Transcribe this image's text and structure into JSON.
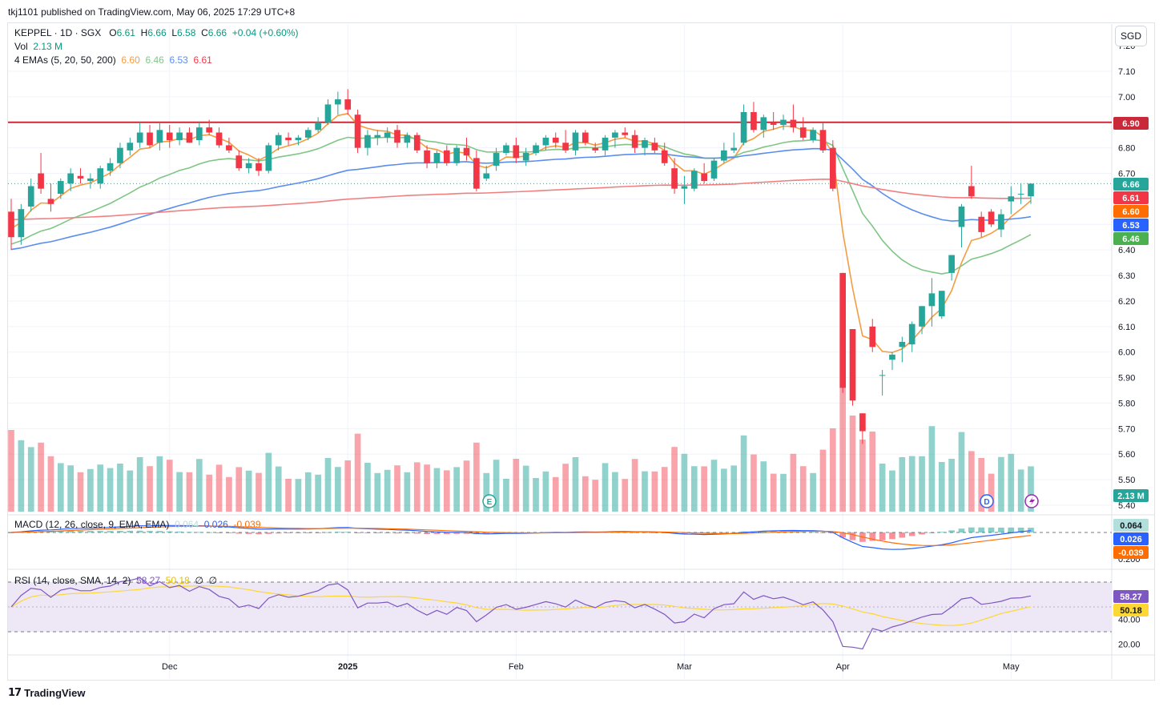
{
  "header": {
    "publisher_line": "tkj1101 published on TradingView.com, May 06, 2025 17:29 UTC+8"
  },
  "legend": {
    "symbol": "KEPPEL · 1D · SGX",
    "o_label": "O",
    "o_value": "6.61",
    "h_label": "H",
    "h_value": "6.66",
    "l_label": "L",
    "l_value": "6.58",
    "c_label": "C",
    "c_value": "6.66",
    "change": "+0.04 (+0.60%)",
    "vol_label": "Vol",
    "vol_value": "2.13 M",
    "ema_label": "4 EMAs (5, 20, 50, 200)",
    "ema5": "6.60",
    "ema20": "6.46",
    "ema50": "6.53",
    "ema200": "6.61"
  },
  "currency_button": "SGD",
  "price_axis": {
    "ticks": [
      "7.10",
      "7.00",
      "6.90",
      "6.80",
      "6.70",
      "6.60",
      "6.50",
      "6.40",
      "6.30",
      "6.20",
      "6.10",
      "6.00",
      "5.90",
      "5.80",
      "5.70",
      "5.60",
      "5.50",
      "5.40"
    ],
    "partial_top_tick": "7.20",
    "labels": {
      "resistance": "6.90",
      "last_price": "6.66",
      "ema200": "6.61",
      "ema5": "6.60",
      "ema50": "6.53",
      "ema20": "6.46",
      "volume": "2.13 M"
    }
  },
  "time_axis": [
    "Dec",
    "2025",
    "Feb",
    "Mar",
    "Apr",
    "May"
  ],
  "macd": {
    "legend": "MACD (12, 26, close, 9, EMA, EMA)",
    "hist": "0.064",
    "macd": "0.026",
    "signal": "-0.039",
    "axis_ticks": [
      "0.200"
    ]
  },
  "rsi": {
    "legend": "RSI (14, close, SMA, 14, 2)",
    "rsi": "58.27",
    "sma": "50.18",
    "extra1": "∅",
    "extra2": "∅",
    "axis_ticks": [
      "60.00",
      "40.00",
      "20.00"
    ],
    "axis_labels": {
      "rsi": "58.27",
      "sma": "50.18"
    }
  },
  "event_markers": [
    "E",
    "D"
  ],
  "brand": "TradingView",
  "colors": {
    "up": "#26a69a",
    "down": "#f23645",
    "ema5": "#f59c42",
    "ema20": "#7fc685",
    "ema50": "#5b8def",
    "ema200": "#f08080",
    "resistance": "#c92a3a",
    "macd_line": "#2962ff",
    "signal_line": "#ff6d00",
    "rsi_line": "#7e57c2",
    "rsi_sma": "#fdd835",
    "rsi_band": "#ede7f6"
  },
  "chart_data": [
    {
      "type": "candlestick",
      "title": "KEPPEL · 1D · SGX",
      "ylim": [
        5.4,
        7.2
      ],
      "last": {
        "open": 6.61,
        "high": 6.66,
        "low": 6.58,
        "close": 6.66
      },
      "resistance_level": 6.9,
      "candles": [
        [
          6.55,
          6.6,
          6.4,
          6.45
        ],
        [
          6.45,
          6.58,
          6.42,
          6.56
        ],
        [
          6.57,
          6.68,
          6.55,
          6.65
        ],
        [
          6.7,
          6.78,
          6.62,
          6.64
        ],
        [
          6.6,
          6.66,
          6.55,
          6.58
        ],
        [
          6.62,
          6.68,
          6.6,
          6.67
        ],
        [
          6.66,
          6.72,
          6.63,
          6.7
        ],
        [
          6.69,
          6.72,
          6.66,
          6.68
        ],
        [
          6.67,
          6.7,
          6.64,
          6.68
        ],
        [
          6.66,
          6.73,
          6.64,
          6.72
        ],
        [
          6.71,
          6.76,
          6.69,
          6.74
        ],
        [
          6.74,
          6.82,
          6.72,
          6.8
        ],
        [
          6.79,
          6.84,
          6.77,
          6.82
        ],
        [
          6.82,
          6.9,
          6.8,
          6.86
        ],
        [
          6.86,
          6.89,
          6.8,
          6.81
        ],
        [
          6.82,
          6.9,
          6.79,
          6.87
        ],
        [
          6.86,
          6.89,
          6.8,
          6.83
        ],
        [
          6.83,
          6.88,
          6.81,
          6.86
        ],
        [
          6.86,
          6.88,
          6.82,
          6.82
        ],
        [
          6.83,
          6.9,
          6.81,
          6.88
        ],
        [
          6.88,
          6.91,
          6.85,
          6.86
        ],
        [
          6.86,
          6.88,
          6.8,
          6.81
        ],
        [
          6.81,
          6.84,
          6.78,
          6.79
        ],
        [
          6.77,
          6.79,
          6.71,
          6.72
        ],
        [
          6.72,
          6.76,
          6.7,
          6.74
        ],
        [
          6.74,
          6.76,
          6.69,
          6.71
        ],
        [
          6.71,
          6.82,
          6.7,
          6.81
        ],
        [
          6.81,
          6.86,
          6.79,
          6.85
        ],
        [
          6.84,
          6.86,
          6.81,
          6.83
        ],
        [
          6.83,
          6.85,
          6.81,
          6.84
        ],
        [
          6.84,
          6.88,
          6.83,
          6.87
        ],
        [
          6.87,
          6.92,
          6.86,
          6.9
        ],
        [
          6.9,
          6.99,
          6.89,
          6.97
        ],
        [
          6.97,
          7.02,
          6.93,
          6.99
        ],
        [
          6.99,
          7.03,
          6.93,
          6.95
        ],
        [
          6.93,
          6.95,
          6.78,
          6.8
        ],
        [
          6.8,
          6.87,
          6.77,
          6.85
        ],
        [
          6.84,
          6.87,
          6.81,
          6.85
        ],
        [
          6.84,
          6.88,
          6.82,
          6.86
        ],
        [
          6.87,
          6.89,
          6.8,
          6.82
        ],
        [
          6.82,
          6.86,
          6.8,
          6.85
        ],
        [
          6.85,
          6.86,
          6.78,
          6.79
        ],
        [
          6.79,
          6.81,
          6.72,
          6.74
        ],
        [
          6.74,
          6.79,
          6.72,
          6.78
        ],
        [
          6.79,
          6.81,
          6.73,
          6.74
        ],
        [
          6.74,
          6.81,
          6.73,
          6.8
        ],
        [
          6.8,
          6.84,
          6.75,
          6.77
        ],
        [
          6.76,
          6.79,
          6.63,
          6.64
        ],
        [
          6.68,
          6.73,
          6.67,
          6.7
        ],
        [
          6.73,
          6.8,
          6.71,
          6.78
        ],
        [
          6.78,
          6.82,
          6.77,
          6.81
        ],
        [
          6.81,
          6.84,
          6.74,
          6.76
        ],
        [
          6.75,
          6.8,
          6.73,
          6.78
        ],
        [
          6.78,
          6.82,
          6.77,
          6.81
        ],
        [
          6.81,
          6.85,
          6.79,
          6.84
        ],
        [
          6.84,
          6.86,
          6.8,
          6.82
        ],
        [
          6.82,
          6.87,
          6.78,
          6.79
        ],
        [
          6.79,
          6.87,
          6.77,
          6.86
        ],
        [
          6.86,
          6.87,
          6.81,
          6.82
        ],
        [
          6.8,
          6.82,
          6.78,
          6.79
        ],
        [
          6.79,
          6.85,
          6.77,
          6.84
        ],
        [
          6.84,
          6.87,
          6.8,
          6.86
        ],
        [
          6.86,
          6.88,
          6.84,
          6.85
        ],
        [
          6.85,
          6.87,
          6.78,
          6.8
        ],
        [
          6.8,
          6.84,
          6.77,
          6.83
        ],
        [
          6.82,
          6.84,
          6.78,
          6.79
        ],
        [
          6.79,
          6.82,
          6.73,
          6.74
        ],
        [
          6.72,
          6.76,
          6.62,
          6.64
        ],
        [
          6.64,
          6.69,
          6.58,
          6.65
        ],
        [
          6.64,
          6.72,
          6.63,
          6.71
        ],
        [
          6.7,
          6.74,
          6.66,
          6.67
        ],
        [
          6.68,
          6.76,
          6.67,
          6.75
        ],
        [
          6.75,
          6.82,
          6.74,
          6.79
        ],
        [
          6.79,
          6.86,
          6.78,
          6.8
        ],
        [
          6.82,
          6.97,
          6.81,
          6.94
        ],
        [
          6.94,
          6.98,
          6.86,
          6.87
        ],
        [
          6.87,
          6.93,
          6.84,
          6.92
        ],
        [
          6.9,
          6.94,
          6.87,
          6.89
        ],
        [
          6.89,
          6.93,
          6.87,
          6.91
        ],
        [
          6.91,
          6.97,
          6.86,
          6.88
        ],
        [
          6.88,
          6.92,
          6.83,
          6.84
        ],
        [
          6.83,
          6.88,
          6.82,
          6.87
        ],
        [
          6.87,
          6.9,
          6.78,
          6.79
        ],
        [
          6.8,
          6.83,
          6.63,
          6.64
        ],
        [
          6.31,
          6.31,
          5.84,
          5.86
        ],
        [
          6.09,
          6.09,
          5.79,
          5.81
        ],
        [
          5.76,
          5.76,
          5.64,
          5.69
        ],
        [
          6.1,
          6.13,
          6.0,
          6.02
        ],
        [
          5.91,
          5.93,
          5.83,
          5.91
        ],
        [
          5.97,
          6.0,
          5.93,
          5.99
        ],
        [
          6.02,
          6.06,
          5.96,
          6.04
        ],
        [
          6.03,
          6.12,
          6.0,
          6.11
        ],
        [
          6.1,
          6.18,
          6.07,
          6.18
        ],
        [
          6.18,
          6.29,
          6.1,
          6.23
        ],
        [
          6.14,
          6.23,
          6.13,
          6.24
        ],
        [
          6.31,
          6.38,
          6.28,
          6.38
        ],
        [
          6.49,
          6.58,
          6.41,
          6.57
        ],
        [
          6.65,
          6.73,
          6.6,
          6.61
        ],
        [
          6.53,
          6.55,
          6.45,
          6.47
        ],
        [
          6.55,
          6.56,
          6.49,
          6.5
        ],
        [
          6.48,
          6.56,
          6.45,
          6.54
        ],
        [
          6.59,
          6.65,
          6.54,
          6.61
        ],
        [
          6.62,
          6.66,
          6.58,
          6.62
        ],
        [
          6.61,
          6.66,
          6.58,
          6.66
        ]
      ]
    },
    {
      "type": "bar",
      "title": "Vol",
      "last_value": "2.13 M"
    },
    {
      "type": "line",
      "title": "MACD (12, 26, close, 9, EMA, EMA)",
      "last": {
        "histogram": 0.064,
        "macd": 0.026,
        "signal": -0.039
      }
    },
    {
      "type": "line",
      "title": "RSI (14, close, SMA, 14, 2)",
      "last": {
        "rsi": 58.27,
        "sma": 50.18
      },
      "bands": [
        70,
        30
      ]
    }
  ]
}
